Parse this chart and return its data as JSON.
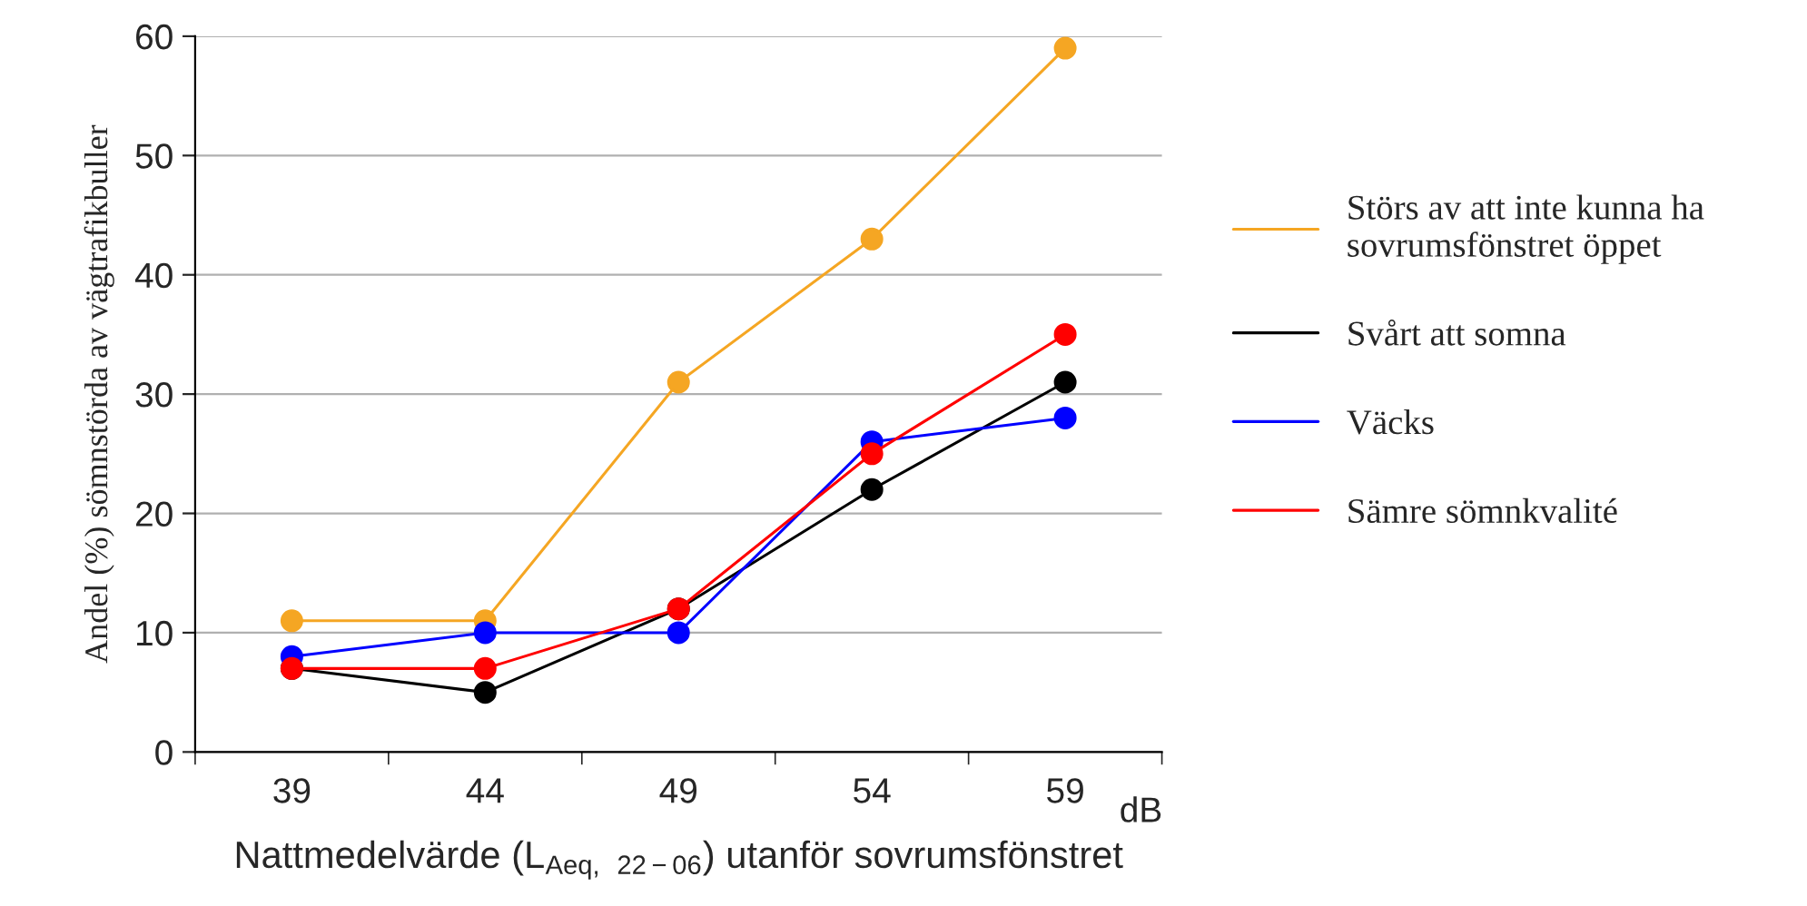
{
  "chart_data": {
    "type": "line",
    "xlabel": "Nattmedelvärde (L$_{Aeq, 22−06}$) utanför sovrumsfönstret",
    "ylabel": "Andel (%) sömnstörda av vägtrafikbuller",
    "categories": [
      "39",
      "44",
      "49",
      "54",
      "59"
    ],
    "series": [
      {
        "name": "Störs av att inte kunna ha sovrumsfönstret öppet",
        "color": "#f5a623",
        "values": [
          11,
          11,
          31,
          43,
          59
        ]
      },
      {
        "name": "Svårt att somna",
        "color": "#000000",
        "values": [
          7,
          5,
          12,
          22,
          31
        ]
      },
      {
        "name": "Väcks",
        "color": "#0000ff",
        "values": [
          8,
          10,
          10,
          26,
          28
        ]
      },
      {
        "name": "Sämre sömnkvalité",
        "color": "#ff0000",
        "values": [
          7,
          7,
          12,
          25,
          35
        ]
      }
    ],
    "ylim": [
      0,
      60
    ],
    "yticks": [
      0,
      10,
      20,
      30,
      40,
      50,
      60
    ],
    "grid": "y",
    "legend": "right",
    "marker": "circle",
    "line_style": "solid",
    "annotations": [
      "dB"
    ]
  }
}
